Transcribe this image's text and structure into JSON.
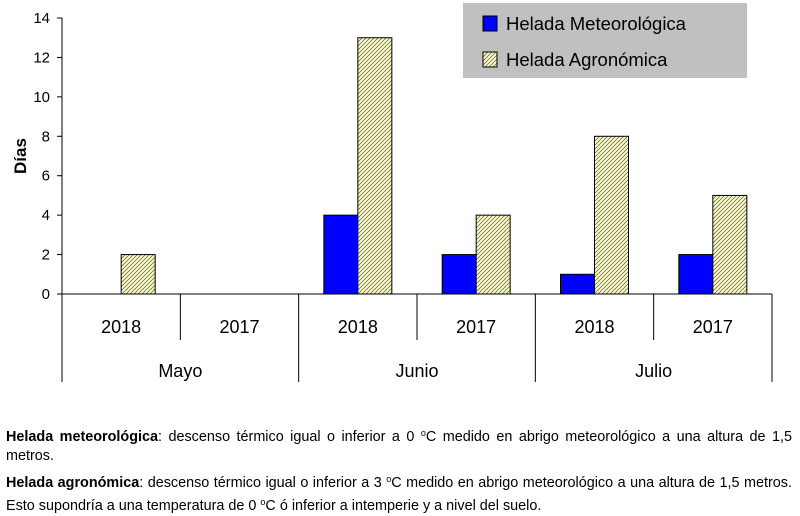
{
  "chart_data": {
    "type": "bar",
    "ylabel": "Días",
    "ylim": [
      0,
      14
    ],
    "yticks": [
      0,
      2,
      4,
      6,
      8,
      10,
      12,
      14
    ],
    "months": [
      "Mayo",
      "Junio",
      "Julio"
    ],
    "categories": [
      "2018",
      "2017",
      "2018",
      "2017",
      "2018",
      "2017"
    ],
    "series": [
      {
        "name": "Helada Meteorológica",
        "color": "#0000ff",
        "values": [
          0,
          0,
          4,
          2,
          1,
          2
        ]
      },
      {
        "name": "Helada Agronómica",
        "color": "#fafac8",
        "pattern": "diagonal-hatch",
        "values": [
          2,
          0,
          13,
          4,
          8,
          5
        ]
      }
    ],
    "legend_position": "top-right"
  },
  "notes": [
    {
      "term": "Helada meteorológica",
      "text_a": ": descenso térmico igual o inferior a 0 ",
      "sup": "o",
      "text_b": "C medido en abrigo meteorológico a una altura de 1,5 metros."
    },
    {
      "term": "Helada agronómica",
      "text_a": ": descenso térmico igual o inferior a 3 ",
      "sup": "o",
      "text_b": "C medido en abrigo meteorológico a una altura de 1,5 metros. Esto supondría a una temperatura de 0 ",
      "sup2": "o",
      "text_c": "C ó inferior a intemperie y a nivel del suelo."
    }
  ]
}
